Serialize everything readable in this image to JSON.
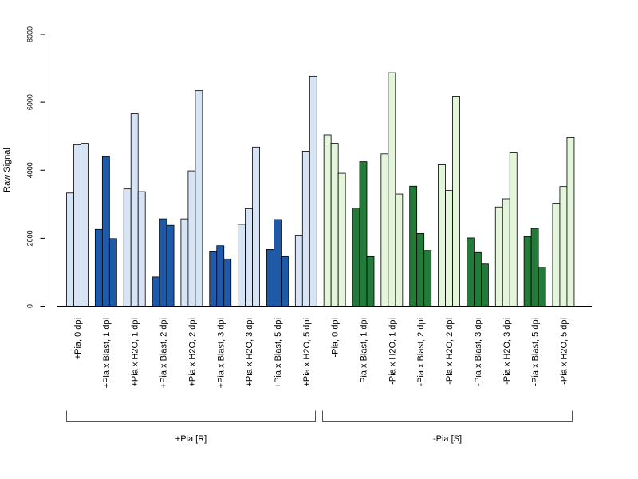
{
  "chart_data": {
    "type": "bar",
    "ylabel": "Raw Signal",
    "ylim": [
      0,
      8000
    ],
    "yticks": [
      0,
      2000,
      4000,
      6000,
      8000
    ],
    "grid": false,
    "colors": {
      "light_blue": "#d6e4f5",
      "dark_blue": "#1f5aa8",
      "light_green": "#e3f5da",
      "dark_green": "#237a39",
      "outline": "#000000"
    },
    "categories": [
      "+Pia, 0 dpi",
      "+Pia x Blast, 1 dpi",
      "+Pia x H2O, 1 dpi",
      "+Pia x Blast, 2 dpi",
      "+Pia x H2O, 2 dpi",
      "+Pia x Blast, 3 dpi",
      "+Pia x H2O, 3 dpi",
      "+Pia x Blast, 5 dpi",
      "+Pia x H2O, 5 dpi",
      "-Pia, 0 dpi",
      "-Pia x Blast, 1 dpi",
      "-Pia x H2O, 1 dpi",
      "-Pia x Blast, 2 dpi",
      "-Pia x H2O, 2 dpi",
      "-Pia x Blast, 3 dpi",
      "-Pia x H2O, 3 dpi",
      "-Pia x Blast, 5 dpi",
      "-Pia x H2O, 5 dpi"
    ],
    "category_colors": [
      "light_blue",
      "dark_blue",
      "light_blue",
      "dark_blue",
      "light_blue",
      "dark_blue",
      "light_blue",
      "dark_blue",
      "light_blue",
      "light_green",
      "dark_green",
      "light_green",
      "dark_green",
      "light_green",
      "dark_green",
      "light_green",
      "dark_green",
      "light_green"
    ],
    "values": [
      [
        3330,
        4750,
        4790
      ],
      [
        2260,
        4400,
        1990
      ],
      [
        3450,
        5660,
        3370
      ],
      [
        860,
        2570,
        2380
      ],
      [
        2570,
        3980,
        6340
      ],
      [
        1600,
        1780,
        1390
      ],
      [
        2410,
        2870,
        4680
      ],
      [
        1670,
        2550,
        1460
      ],
      [
        2090,
        4560,
        6770
      ],
      [
        5040,
        4790,
        3910
      ],
      [
        2890,
        4250,
        1460
      ],
      [
        4480,
        6870,
        3300
      ],
      [
        3530,
        2140,
        1640
      ],
      [
        4160,
        3410,
        6180
      ],
      [
        2010,
        1580,
        1240
      ],
      [
        2920,
        3160,
        4510
      ],
      [
        2050,
        2290,
        1150
      ],
      [
        3030,
        3520,
        4960
      ]
    ],
    "groups": [
      {
        "label": "+Pia [R]",
        "start": 0,
        "end": 8
      },
      {
        "label": "-Pia [S]",
        "start": 9,
        "end": 17
      }
    ]
  }
}
